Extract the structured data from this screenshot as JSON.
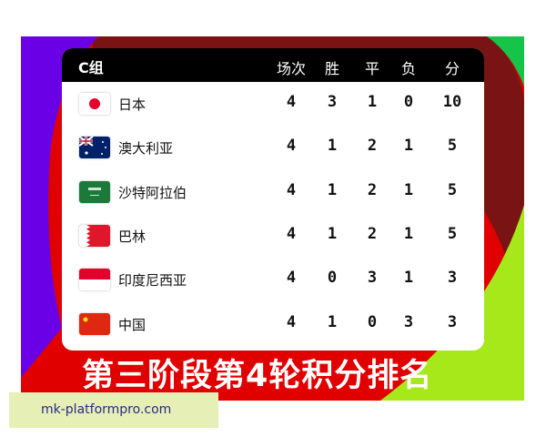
{
  "colors": {
    "purple": "#6a00e6",
    "dark_red": "#7a1414",
    "red": "#e00000",
    "green": "#17c44a",
    "lime": "#a6e81a",
    "header": "#000000"
  },
  "table": {
    "group": "C组",
    "columns": [
      "场次",
      "胜",
      "平",
      "负",
      "分"
    ],
    "rows": [
      {
        "team": "日本",
        "flag": "japan-flag",
        "values": [
          "4",
          "3",
          "1",
          "0",
          "10"
        ]
      },
      {
        "team": "澳大利亚",
        "flag": "australia-flag",
        "values": [
          "4",
          "1",
          "2",
          "1",
          "5"
        ]
      },
      {
        "team": "沙特阿拉伯",
        "flag": "saudi-arabia-flag",
        "values": [
          "4",
          "1",
          "2",
          "1",
          "5"
        ]
      },
      {
        "team": "巴林",
        "flag": "bahrain-flag",
        "values": [
          "4",
          "1",
          "2",
          "1",
          "5"
        ]
      },
      {
        "team": "印度尼西亚",
        "flag": "indonesia-flag",
        "values": [
          "4",
          "0",
          "3",
          "1",
          "3"
        ]
      },
      {
        "team": "中国",
        "flag": "china-flag",
        "values": [
          "4",
          "1",
          "0",
          "3",
          "3"
        ]
      }
    ]
  },
  "caption": "第三阶段第4轮积分排名",
  "watermark": "mk-platformpro.com"
}
